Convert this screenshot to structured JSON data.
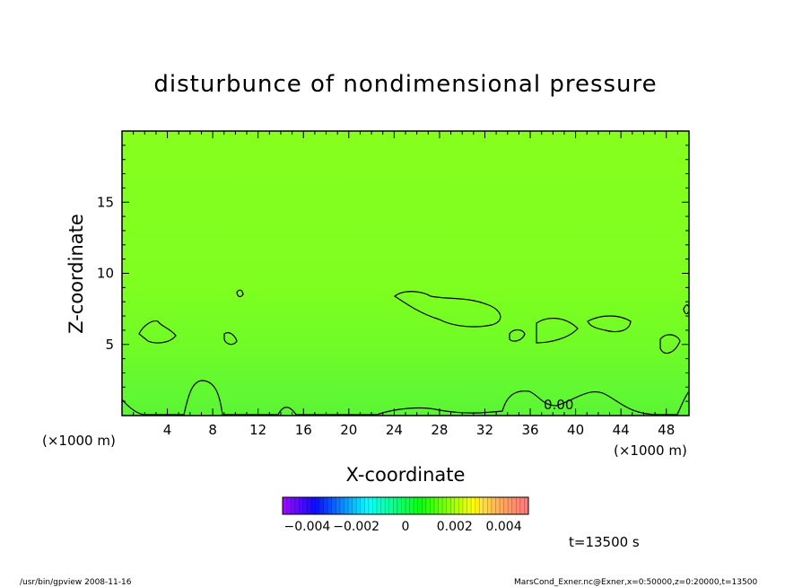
{
  "chart_data": {
    "type": "heatmap",
    "title": "disturbunce of nondimensional pressure",
    "xlabel": "X-coordinate",
    "ylabel": "Z-coordinate",
    "x_unit": "(×1000 m)",
    "y_unit": "(×1000 m)",
    "xlim": [
      0,
      50
    ],
    "ylim": [
      0,
      20
    ],
    "x_ticks": [
      4,
      8,
      12,
      16,
      20,
      24,
      28,
      32,
      36,
      40,
      44,
      48
    ],
    "y_ticks": [
      5,
      10,
      15
    ],
    "contour_level_label": "0.00",
    "colorbar": {
      "min": -0.005,
      "max": 0.005,
      "ticks": [
        -0.004,
        -0.002,
        0,
        0.002,
        0.004
      ],
      "tick_labels": [
        "−0.004",
        "−0.002",
        "0",
        "0.002",
        "0.004"
      ]
    },
    "field_summary": "values near 0 (light green) throughout; slightly positive (greener) band z<3",
    "zero_contour_regions": [
      {
        "x_range": [
          0,
          50
        ],
        "z_max": 2.5,
        "note": "wavy contour along bottom"
      },
      {
        "x_range": [
          1,
          5
        ],
        "z_range": [
          5,
          7
        ]
      },
      {
        "x_range": [
          24,
          33
        ],
        "z_range": [
          6,
          8.5
        ]
      },
      {
        "x_range": [
          36,
          39
        ],
        "z_range": [
          5,
          7
        ]
      },
      {
        "x_range": [
          41,
          45
        ],
        "z_range": [
          5.5,
          7
        ]
      },
      {
        "x_range": [
          47,
          49
        ],
        "z_range": [
          4,
          5.5
        ]
      }
    ]
  },
  "annotations": {
    "time": "t=13500 s",
    "footer_left": "/usr/bin/gpview   2008-11-16",
    "footer_right": "MarsCond_Exner.nc@Exner,x=0:50000,z=0:20000,t=13500"
  },
  "colors": {
    "field_base": "#7fff22",
    "field_low": "#5ff530",
    "contour": "#000000"
  }
}
